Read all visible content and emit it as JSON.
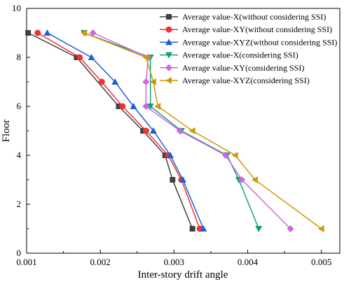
{
  "chart_data": {
    "type": "line",
    "title": "",
    "xlabel": "Inter-story drift angle",
    "ylabel": "Floor",
    "xlim": [
      0.001,
      0.00525
    ],
    "ylim": [
      0,
      10
    ],
    "x_ticks": [
      "0.001",
      "0.002",
      "0.003",
      "0.004",
      "0.005"
    ],
    "y_ticks": [
      "0",
      "2",
      "4",
      "6",
      "8",
      "10"
    ],
    "grid": false,
    "legend_position": "top-right",
    "series": [
      {
        "name": "Average value-X(without considering SSI)",
        "color": "#404040",
        "marker": "square",
        "points": [
          [
            0.00325,
            1
          ],
          [
            0.00298,
            3
          ],
          [
            0.00288,
            4
          ],
          [
            0.00258,
            5
          ],
          [
            0.00225,
            6
          ],
          [
            0.00168,
            8
          ],
          [
            0.00102,
            9
          ]
        ]
      },
      {
        "name": "Average value-XY(without considering SSI)",
        "color": "#ee3333",
        "marker": "circle",
        "points": [
          [
            0.00335,
            1
          ],
          [
            0.0031,
            3
          ],
          [
            0.00292,
            4
          ],
          [
            0.00262,
            5
          ],
          [
            0.0023,
            6
          ],
          [
            0.00202,
            7
          ],
          [
            0.00172,
            8
          ],
          [
            0.00115,
            9
          ]
        ]
      },
      {
        "name": "Average value-XYZ(without considering SSI)",
        "color": "#1f5fd6",
        "marker": "triangle-up",
        "points": [
          [
            0.0034,
            1
          ],
          [
            0.00312,
            3
          ],
          [
            0.00295,
            4
          ],
          [
            0.00272,
            5
          ],
          [
            0.00245,
            6
          ],
          [
            0.0022,
            7
          ],
          [
            0.00188,
            8
          ],
          [
            0.00128,
            9
          ]
        ]
      },
      {
        "name": "Average value-X(considering SSI)",
        "color": "#12a07a",
        "marker": "triangle-down",
        "points": [
          [
            0.00415,
            1
          ],
          [
            0.00388,
            3
          ],
          [
            0.00372,
            4
          ],
          [
            0.0031,
            5
          ],
          [
            0.00268,
            6
          ],
          [
            0.00268,
            8
          ],
          [
            0.00178,
            9
          ]
        ]
      },
      {
        "name": "Average value-XY(considering SSI)",
        "color": "#cc66e0",
        "marker": "diamond",
        "points": [
          [
            0.00458,
            1
          ],
          [
            0.00392,
            3
          ],
          [
            0.0037,
            4
          ],
          [
            0.00308,
            5
          ],
          [
            0.00262,
            6
          ],
          [
            0.00262,
            7
          ],
          [
            0.00265,
            8
          ],
          [
            0.0019,
            9
          ]
        ]
      },
      {
        "name": "Average value-XYZ(considering SSI)",
        "color": "#cc9a0a",
        "marker": "triangle-left",
        "points": [
          [
            0.005,
            1
          ],
          [
            0.0041,
            3
          ],
          [
            0.00383,
            4
          ],
          [
            0.00325,
            5
          ],
          [
            0.00278,
            6
          ],
          [
            0.00272,
            7
          ],
          [
            0.00262,
            8
          ],
          [
            0.00178,
            9
          ]
        ]
      }
    ]
  }
}
